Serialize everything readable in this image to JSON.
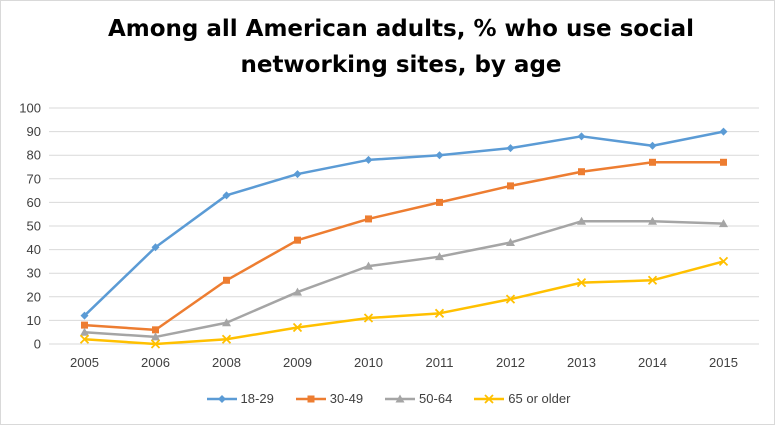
{
  "title_line1": "Among all American adults, % who use social",
  "title_line2": "networking sites, by age",
  "chart_data": {
    "type": "line",
    "title": "Among all American adults, % who use social networking sites, by age",
    "x": [
      "2005",
      "2006",
      "2008",
      "2009",
      "2010",
      "2011",
      "2012",
      "2013",
      "2014",
      "2015"
    ],
    "ylim": [
      0,
      100
    ],
    "yticks": [
      0,
      10,
      20,
      30,
      40,
      50,
      60,
      70,
      80,
      90,
      100
    ],
    "grid": true,
    "legend_position": "bottom",
    "series": [
      {
        "name": "18-29",
        "color": "#5b9bd5",
        "marker": "diamond",
        "values": [
          12,
          41,
          63,
          72,
          78,
          80,
          83,
          88,
          84,
          90
        ]
      },
      {
        "name": "30-49",
        "color": "#ed7d31",
        "marker": "square",
        "values": [
          8,
          6,
          27,
          44,
          53,
          60,
          67,
          73,
          77,
          77
        ]
      },
      {
        "name": "50-64",
        "color": "#a5a5a5",
        "marker": "triangle",
        "values": [
          5,
          3,
          9,
          22,
          33,
          37,
          43,
          52,
          52,
          51
        ]
      },
      {
        "name": "65 or older",
        "color": "#ffc000",
        "marker": "x",
        "values": [
          2,
          0,
          2,
          7,
          11,
          13,
          19,
          26,
          27,
          35
        ]
      }
    ]
  }
}
